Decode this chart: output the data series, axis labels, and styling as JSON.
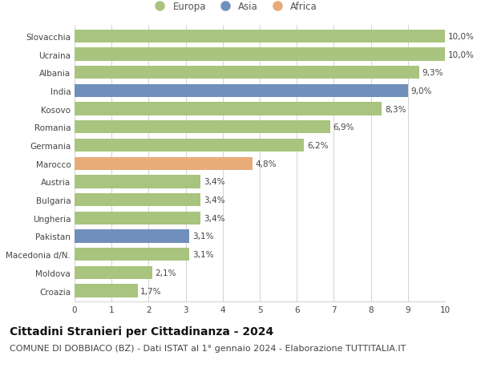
{
  "countries": [
    "Slovacchia",
    "Ucraina",
    "Albania",
    "India",
    "Kosovo",
    "Romania",
    "Germania",
    "Marocco",
    "Austria",
    "Bulgaria",
    "Ungheria",
    "Pakistan",
    "Macedonia d/N.",
    "Moldova",
    "Croazia"
  ],
  "values": [
    10.0,
    10.0,
    9.3,
    9.0,
    8.3,
    6.9,
    6.2,
    4.8,
    3.4,
    3.4,
    3.4,
    3.1,
    3.1,
    2.1,
    1.7
  ],
  "labels": [
    "10,0%",
    "10,0%",
    "9,3%",
    "9,0%",
    "8,3%",
    "6,9%",
    "6,2%",
    "4,8%",
    "3,4%",
    "3,4%",
    "3,4%",
    "3,1%",
    "3,1%",
    "2,1%",
    "1,7%"
  ],
  "continents": [
    "Europa",
    "Europa",
    "Europa",
    "Asia",
    "Europa",
    "Europa",
    "Europa",
    "Africa",
    "Europa",
    "Europa",
    "Europa",
    "Asia",
    "Europa",
    "Europa",
    "Europa"
  ],
  "colors": {
    "Europa": "#a8c47e",
    "Asia": "#7090bb",
    "Africa": "#e8ab7a"
  },
  "legend_items": [
    "Europa",
    "Asia",
    "Africa"
  ],
  "xlim": [
    0,
    10
  ],
  "xticks": [
    0,
    1,
    2,
    3,
    4,
    5,
    6,
    7,
    8,
    9,
    10
  ],
  "title": "Cittadini Stranieri per Cittadinanza - 2024",
  "subtitle": "COMUNE DI DOBBIACO (BZ) - Dati ISTAT al 1° gennaio 2024 - Elaborazione TUTTITALIA.IT",
  "title_fontsize": 10,
  "subtitle_fontsize": 8,
  "label_fontsize": 7.5,
  "tick_fontsize": 7.5,
  "legend_fontsize": 8.5,
  "bar_height": 0.72,
  "background_color": "#ffffff",
  "grid_color": "#cccccc"
}
